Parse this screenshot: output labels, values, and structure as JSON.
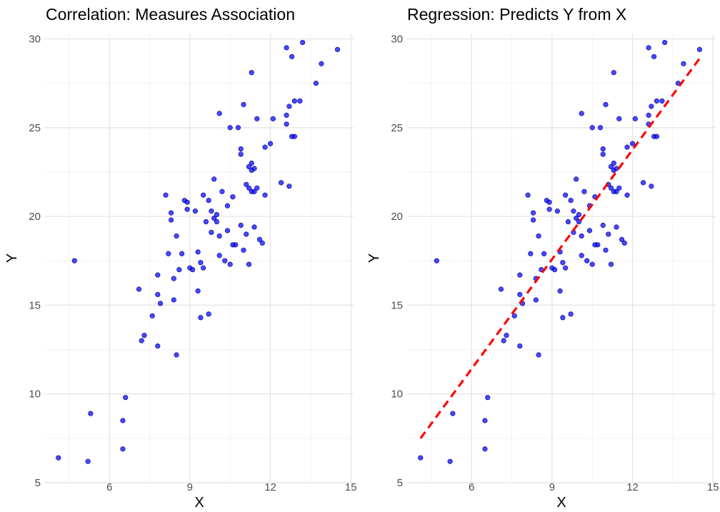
{
  "chart_data": [
    {
      "type": "scatter",
      "title": "Correlation: Measures Association",
      "xlabel": "X",
      "ylabel": "Y",
      "xlim": [
        3.6,
        15.1
      ],
      "ylim": [
        5,
        30.3
      ],
      "xticks": [
        6,
        9,
        12,
        15
      ],
      "yticks": [
        5,
        10,
        15,
        20,
        25,
        30
      ],
      "grid": true,
      "point_color": "#0000ff",
      "series": [
        {
          "points": [
            [
              4.1,
              6.4
            ],
            [
              4.7,
              17.5
            ],
            [
              5.2,
              6.2
            ],
            [
              5.3,
              8.9
            ],
            [
              6.5,
              8.5
            ],
            [
              6.5,
              6.9
            ],
            [
              6.6,
              9.8
            ],
            [
              7.1,
              15.9
            ],
            [
              7.2,
              13.0
            ],
            [
              7.3,
              13.3
            ],
            [
              7.6,
              14.4
            ],
            [
              7.8,
              16.7
            ],
            [
              7.8,
              15.6
            ],
            [
              7.8,
              12.7
            ],
            [
              7.9,
              15.1
            ],
            [
              8.1,
              21.2
            ],
            [
              8.2,
              17.9
            ],
            [
              8.3,
              19.8
            ],
            [
              8.3,
              20.2
            ],
            [
              8.4,
              15.3
            ],
            [
              8.4,
              16.5
            ],
            [
              8.5,
              12.2
            ],
            [
              8.5,
              18.9
            ],
            [
              8.6,
              17.0
            ],
            [
              8.7,
              17.9
            ],
            [
              8.8,
              20.9
            ],
            [
              8.9,
              20.4
            ],
            [
              8.9,
              20.8
            ],
            [
              9.0,
              17.1
            ],
            [
              9.1,
              17.0
            ],
            [
              9.2,
              20.3
            ],
            [
              9.3,
              18.0
            ],
            [
              9.3,
              15.8
            ],
            [
              9.4,
              17.4
            ],
            [
              9.4,
              14.3
            ],
            [
              9.5,
              21.2
            ],
            [
              9.5,
              17.1
            ],
            [
              9.6,
              19.7
            ],
            [
              9.7,
              20.9
            ],
            [
              9.7,
              14.5
            ],
            [
              9.8,
              20.3
            ],
            [
              9.8,
              19.1
            ],
            [
              9.9,
              19.9
            ],
            [
              9.9,
              22.1
            ],
            [
              10.0,
              20.1
            ],
            [
              10.0,
              19.7
            ],
            [
              10.1,
              25.8
            ],
            [
              10.1,
              18.9
            ],
            [
              10.1,
              17.8
            ],
            [
              10.2,
              21.4
            ],
            [
              10.3,
              17.5
            ],
            [
              10.4,
              20.6
            ],
            [
              10.4,
              19.2
            ],
            [
              10.5,
              17.3
            ],
            [
              10.5,
              25.0
            ],
            [
              10.6,
              21.1
            ],
            [
              10.6,
              18.4
            ],
            [
              10.7,
              18.4
            ],
            [
              10.8,
              25.0
            ],
            [
              10.9,
              23.5
            ],
            [
              10.9,
              23.8
            ],
            [
              10.9,
              19.5
            ],
            [
              11.0,
              18.1
            ],
            [
              11.0,
              26.3
            ],
            [
              11.1,
              19.0
            ],
            [
              11.1,
              21.8
            ],
            [
              11.2,
              22.8
            ],
            [
              11.2,
              17.3
            ],
            [
              11.2,
              21.6
            ],
            [
              11.3,
              23.0
            ],
            [
              11.3,
              22.6
            ],
            [
              11.3,
              21.4
            ],
            [
              11.3,
              28.1
            ],
            [
              11.4,
              19.4
            ],
            [
              11.4,
              22.7
            ],
            [
              11.4,
              21.4
            ],
            [
              11.5,
              25.5
            ],
            [
              11.5,
              21.6
            ],
            [
              11.6,
              18.7
            ],
            [
              11.7,
              18.5
            ],
            [
              11.8,
              23.9
            ],
            [
              11.8,
              21.2
            ],
            [
              12.0,
              24.1
            ],
            [
              12.1,
              25.5
            ],
            [
              12.4,
              21.9
            ],
            [
              12.6,
              29.5
            ],
            [
              12.6,
              25.2
            ],
            [
              12.6,
              25.7
            ],
            [
              12.7,
              26.2
            ],
            [
              12.7,
              21.7
            ],
            [
              12.8,
              24.5
            ],
            [
              12.8,
              29.0
            ],
            [
              12.9,
              24.5
            ],
            [
              12.9,
              26.5
            ],
            [
              13.1,
              26.5
            ],
            [
              13.2,
              29.8
            ],
            [
              13.7,
              27.5
            ],
            [
              13.9,
              28.6
            ],
            [
              14.5,
              29.4
            ]
          ]
        }
      ]
    },
    {
      "type": "scatter",
      "title": "Regression: Predicts Y from X",
      "xlabel": "X",
      "ylabel": "Y",
      "xlim": [
        3.6,
        15.1
      ],
      "ylim": [
        5,
        30.3
      ],
      "xticks": [
        6,
        9,
        12,
        15
      ],
      "yticks": [
        5,
        10,
        15,
        20,
        25,
        30
      ],
      "grid": true,
      "point_color": "#0000ff",
      "series": [
        {
          "points": [
            [
              4.1,
              6.4
            ],
            [
              4.7,
              17.5
            ],
            [
              5.2,
              6.2
            ],
            [
              5.3,
              8.9
            ],
            [
              6.5,
              8.5
            ],
            [
              6.5,
              6.9
            ],
            [
              6.6,
              9.8
            ],
            [
              7.1,
              15.9
            ],
            [
              7.2,
              13.0
            ],
            [
              7.3,
              13.3
            ],
            [
              7.6,
              14.4
            ],
            [
              7.8,
              16.7
            ],
            [
              7.8,
              15.6
            ],
            [
              7.8,
              12.7
            ],
            [
              7.9,
              15.1
            ],
            [
              8.1,
              21.2
            ],
            [
              8.2,
              17.9
            ],
            [
              8.3,
              19.8
            ],
            [
              8.3,
              20.2
            ],
            [
              8.4,
              15.3
            ],
            [
              8.4,
              16.5
            ],
            [
              8.5,
              12.2
            ],
            [
              8.5,
              18.9
            ],
            [
              8.6,
              17.0
            ],
            [
              8.7,
              17.9
            ],
            [
              8.8,
              20.9
            ],
            [
              8.9,
              20.4
            ],
            [
              8.9,
              20.8
            ],
            [
              9.0,
              17.1
            ],
            [
              9.1,
              17.0
            ],
            [
              9.2,
              20.3
            ],
            [
              9.3,
              18.0
            ],
            [
              9.3,
              15.8
            ],
            [
              9.4,
              17.4
            ],
            [
              9.4,
              14.3
            ],
            [
              9.5,
              21.2
            ],
            [
              9.5,
              17.1
            ],
            [
              9.6,
              19.7
            ],
            [
              9.7,
              20.9
            ],
            [
              9.7,
              14.5
            ],
            [
              9.8,
              20.3
            ],
            [
              9.8,
              19.1
            ],
            [
              9.9,
              19.9
            ],
            [
              9.9,
              22.1
            ],
            [
              10.0,
              20.1
            ],
            [
              10.0,
              19.7
            ],
            [
              10.1,
              25.8
            ],
            [
              10.1,
              18.9
            ],
            [
              10.1,
              17.8
            ],
            [
              10.2,
              21.4
            ],
            [
              10.3,
              17.5
            ],
            [
              10.4,
              20.6
            ],
            [
              10.4,
              19.2
            ],
            [
              10.5,
              17.3
            ],
            [
              10.5,
              25.0
            ],
            [
              10.6,
              21.1
            ],
            [
              10.6,
              18.4
            ],
            [
              10.7,
              18.4
            ],
            [
              10.8,
              25.0
            ],
            [
              10.9,
              23.5
            ],
            [
              10.9,
              23.8
            ],
            [
              10.9,
              19.5
            ],
            [
              11.0,
              18.1
            ],
            [
              11.0,
              26.3
            ],
            [
              11.1,
              19.0
            ],
            [
              11.1,
              21.8
            ],
            [
              11.2,
              22.8
            ],
            [
              11.2,
              17.3
            ],
            [
              11.2,
              21.6
            ],
            [
              11.3,
              23.0
            ],
            [
              11.3,
              22.6
            ],
            [
              11.3,
              21.4
            ],
            [
              11.3,
              28.1
            ],
            [
              11.4,
              19.4
            ],
            [
              11.4,
              22.7
            ],
            [
              11.4,
              21.4
            ],
            [
              11.5,
              25.5
            ],
            [
              11.5,
              21.6
            ],
            [
              11.6,
              18.7
            ],
            [
              11.7,
              18.5
            ],
            [
              11.8,
              23.9
            ],
            [
              11.8,
              21.2
            ],
            [
              12.0,
              24.1
            ],
            [
              12.1,
              25.5
            ],
            [
              12.4,
              21.9
            ],
            [
              12.6,
              29.5
            ],
            [
              12.6,
              25.2
            ],
            [
              12.6,
              25.7
            ],
            [
              12.7,
              26.2
            ],
            [
              12.7,
              21.7
            ],
            [
              12.8,
              24.5
            ],
            [
              12.8,
              29.0
            ],
            [
              12.9,
              24.5
            ],
            [
              12.9,
              26.5
            ],
            [
              13.1,
              26.5
            ],
            [
              13.2,
              29.8
            ],
            [
              13.7,
              27.5
            ],
            [
              13.9,
              28.6
            ],
            [
              14.5,
              29.4
            ]
          ]
        }
      ],
      "regression_line": {
        "x": [
          4.1,
          14.5
        ],
        "y": [
          7.5,
          28.9
        ],
        "color": "#ff0000",
        "style": "dashed"
      }
    }
  ]
}
